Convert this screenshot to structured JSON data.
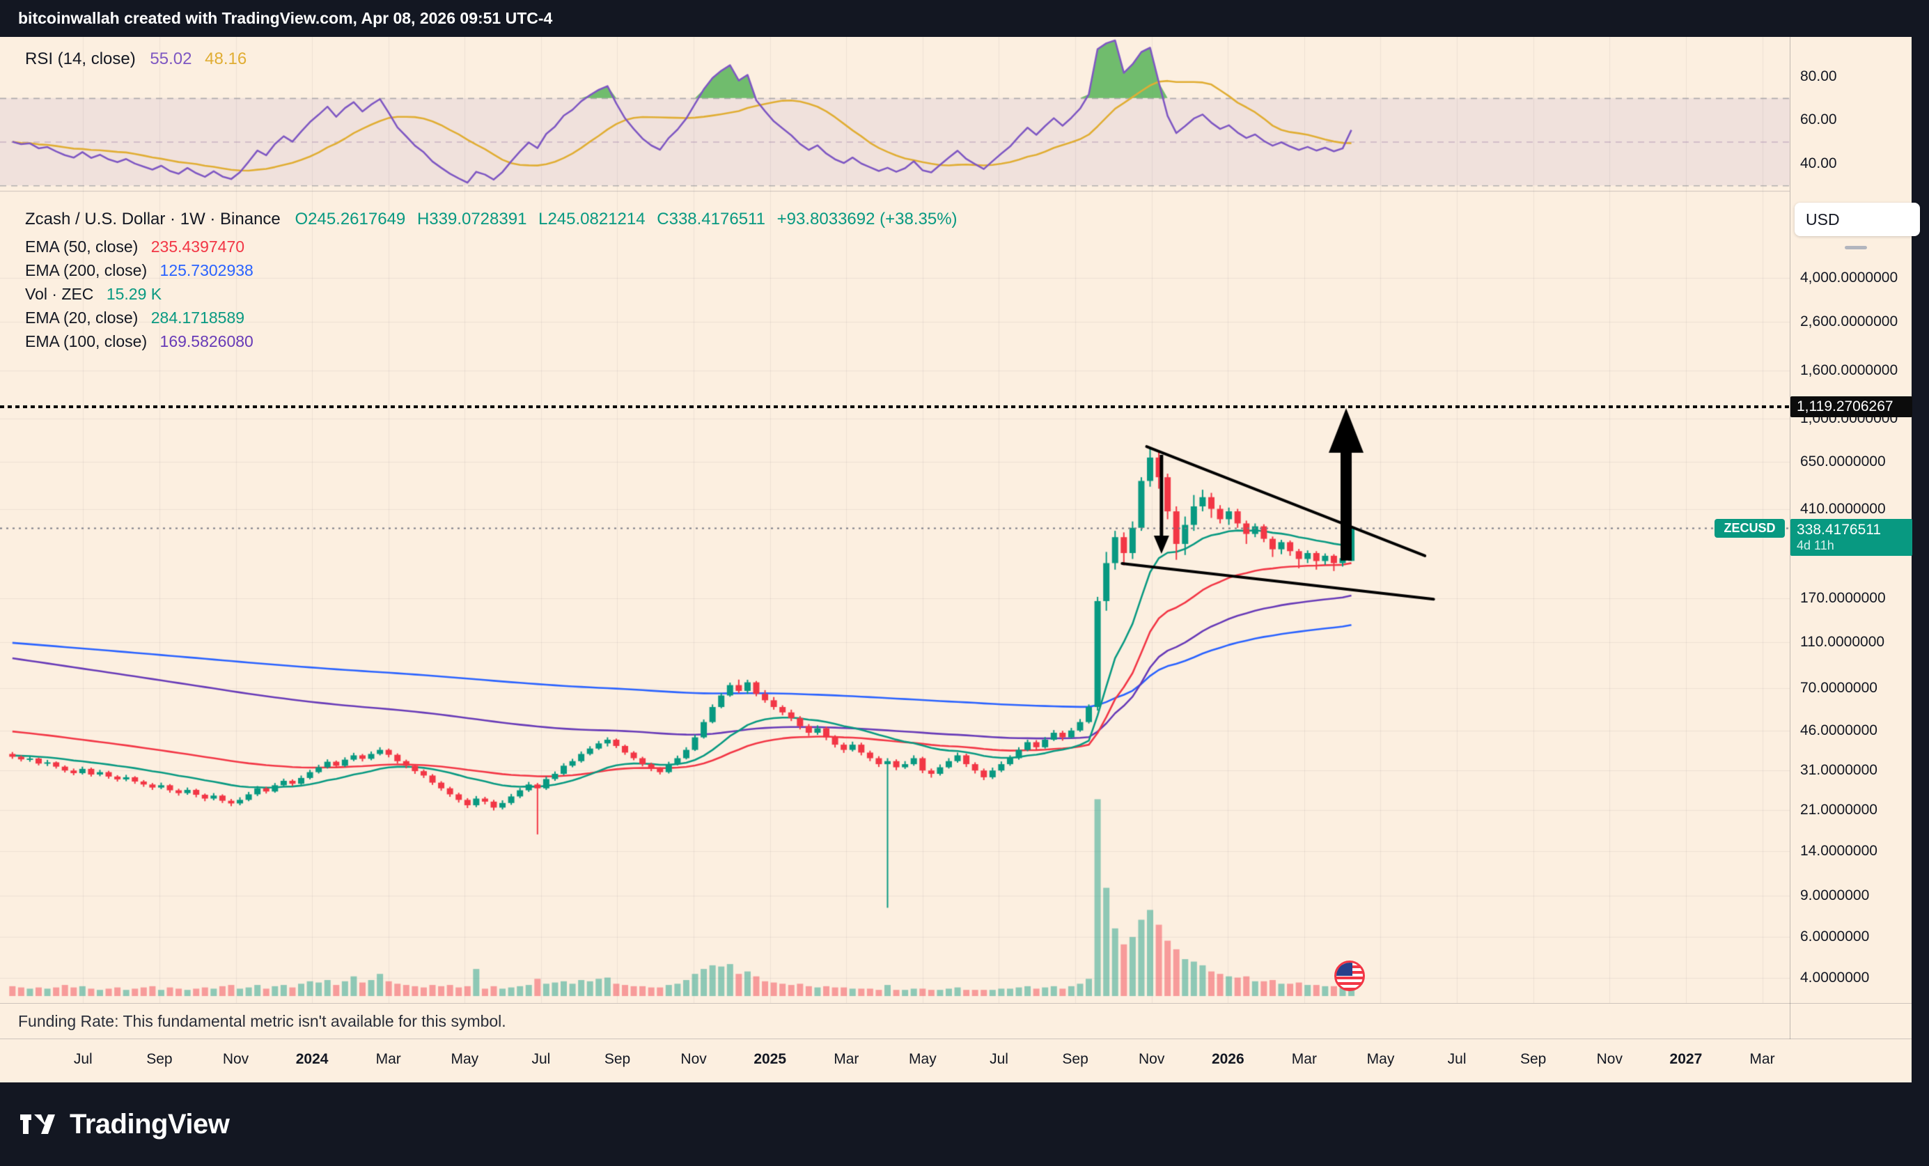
{
  "header": {
    "title": "bitcoinwallah created with TradingView.com, Apr 08, 2026 09:51 UTC-4"
  },
  "footer": {
    "brand": "TradingView"
  },
  "colors": {
    "up": "#089981",
    "down": "#f23645",
    "rsi": "#7e57c2",
    "rsi_ma": "#E0AD33",
    "ema20": "#089981",
    "ema50": "#f23645",
    "ema100": "#673ab7",
    "ema200": "#2962ff",
    "accent_teal": "#089981",
    "badge_black": "#0c0c0c",
    "background": "#fcefe0",
    "frame": "#131722",
    "vol_up": "rgba(8,153,129,0.45)",
    "vol_down": "rgba(242,54,69,0.45)"
  },
  "rsi_pane": {
    "label": "RSI (14, close)",
    "value": "55.02",
    "ma_value": "48.16",
    "axis_labels": [
      {
        "text": "80.00",
        "value": 80
      },
      {
        "text": "60.00",
        "value": 60
      },
      {
        "text": "40.00",
        "value": 40
      }
    ]
  },
  "main_pane": {
    "symbol_line": {
      "title": "Zcash / U.S. Dollar · 1W · Binance",
      "o": "O245.2617649",
      "h": "H339.0728391",
      "l": "L245.0821214",
      "c": "C338.4176511",
      "change": "+93.8033692 (+38.35%)"
    },
    "indicators": [
      {
        "label": "EMA (50, close)",
        "value": "235.4397470",
        "color": "#f23645"
      },
      {
        "label": "EMA (200, close)",
        "value": "125.7302938",
        "color": "#2962ff"
      },
      {
        "label": "Vol · ZEC",
        "value": "15.29 K",
        "color": "#089981"
      },
      {
        "label": "EMA (20, close)",
        "value": "284.1718589",
        "color": "#089981"
      },
      {
        "label": "EMA (100, close)",
        "value": "169.5826080",
        "color": "#673ab7"
      }
    ],
    "price_axis": {
      "currency_button": "USD",
      "labels": [
        {
          "text": "4,000.0000000",
          "price": 4000
        },
        {
          "text": "2,600.0000000",
          "price": 2600
        },
        {
          "text": "1,600.0000000",
          "price": 1600
        },
        {
          "text": "1,000.0000000",
          "price": 1000
        },
        {
          "text": "650.0000000",
          "price": 650
        },
        {
          "text": "410.0000000",
          "price": 410
        },
        {
          "text": "170.0000000",
          "price": 170
        },
        {
          "text": "110.0000000",
          "price": 110
        },
        {
          "text": "70.0000000",
          "price": 70
        },
        {
          "text": "46.0000000",
          "price": 46
        },
        {
          "text": "31.0000000",
          "price": 31
        },
        {
          "text": "21.0000000",
          "price": 21
        },
        {
          "text": "14.0000000",
          "price": 14
        },
        {
          "text": "9.0000000",
          "price": 9
        },
        {
          "text": "6.0000000",
          "price": 6
        },
        {
          "text": "4.0000000",
          "price": 4
        }
      ],
      "highlight_black": {
        "text": "1,119.2706267",
        "price": 1119.2706267
      },
      "highlight_teal": {
        "text": "338.4176511",
        "countdown": "4d 11h",
        "price": 338.4176511
      },
      "symbol_tag": "ZECUSD"
    }
  },
  "funding_note": "Funding Rate: This fundamental metric isn't available for this symbol.",
  "time_axis": [
    {
      "label": "Jul",
      "bold": false
    },
    {
      "label": "Sep",
      "bold": false
    },
    {
      "label": "Nov",
      "bold": false
    },
    {
      "label": "2024",
      "bold": true
    },
    {
      "label": "Mar",
      "bold": false
    },
    {
      "label": "May",
      "bold": false
    },
    {
      "label": "Jul",
      "bold": false
    },
    {
      "label": "Sep",
      "bold": false
    },
    {
      "label": "Nov",
      "bold": false
    },
    {
      "label": "2025",
      "bold": true
    },
    {
      "label": "Mar",
      "bold": false
    },
    {
      "label": "May",
      "bold": false
    },
    {
      "label": "Jul",
      "bold": false
    },
    {
      "label": "Sep",
      "bold": false
    },
    {
      "label": "Nov",
      "bold": false
    },
    {
      "label": "2026",
      "bold": true
    },
    {
      "label": "Mar",
      "bold": false
    },
    {
      "label": "May",
      "bold": false
    },
    {
      "label": "Jul",
      "bold": false
    },
    {
      "label": "Sep",
      "bold": false
    },
    {
      "label": "Nov",
      "bold": false
    },
    {
      "label": "2027",
      "bold": true
    },
    {
      "label": "Mar",
      "bold": false
    }
  ],
  "chart_data": {
    "type": "candlestick+volume+rsi",
    "symbol": "ZECUSD",
    "exchange": "Binance",
    "timeframe": "1W",
    "scale": "log",
    "ohlc_current": {
      "open": 245.2617649,
      "high": 339.0728391,
      "low": 245.0821214,
      "close": 338.4176511,
      "change": 93.8033692,
      "change_pct": 38.35
    },
    "levels": {
      "target_dotted": 1119.2706267,
      "last_price": 338.4176511
    },
    "candle_format": "[open, high, low, close, volume_thousands]",
    "candles": [
      [
        36.5,
        37.2,
        34.8,
        35.5,
        8
      ],
      [
        35.5,
        36.0,
        33.9,
        34.6,
        7
      ],
      [
        34.6,
        35.8,
        33.8,
        34.9,
        6
      ],
      [
        34.9,
        35.2,
        32.6,
        33.2,
        7
      ],
      [
        33.2,
        34.4,
        32.4,
        33.6,
        6
      ],
      [
        33.6,
        33.9,
        31.6,
        32.2,
        7
      ],
      [
        32.2,
        32.6,
        30.4,
        31.0,
        9
      ],
      [
        31.0,
        31.6,
        29.6,
        30.2,
        7
      ],
      [
        30.2,
        32.2,
        29.8,
        31.5,
        8
      ],
      [
        31.5,
        31.9,
        29.2,
        29.8,
        6
      ],
      [
        29.8,
        31.2,
        29.3,
        30.5,
        5
      ],
      [
        30.5,
        30.9,
        28.6,
        29.2,
        6
      ],
      [
        29.2,
        29.6,
        27.8,
        28.4,
        7
      ],
      [
        28.4,
        29.7,
        27.9,
        29.0,
        5
      ],
      [
        29.0,
        29.3,
        27.2,
        27.8,
        6
      ],
      [
        27.8,
        28.2,
        26.4,
        27.0,
        7
      ],
      [
        27.0,
        27.4,
        25.6,
        26.2,
        8
      ],
      [
        26.2,
        27.5,
        25.8,
        26.8,
        5
      ],
      [
        26.8,
        27.1,
        24.9,
        25.5,
        7
      ],
      [
        25.5,
        25.9,
        24.2,
        24.8,
        6
      ],
      [
        24.8,
        26.2,
        24.4,
        25.6,
        5
      ],
      [
        25.6,
        25.9,
        23.8,
        24.4,
        6
      ],
      [
        24.4,
        24.7,
        22.9,
        23.5,
        7
      ],
      [
        23.5,
        24.8,
        23.1,
        24.2,
        6
      ],
      [
        24.2,
        24.5,
        22.5,
        23.0,
        8
      ],
      [
        23.0,
        23.4,
        21.8,
        22.4,
        9
      ],
      [
        22.4,
        23.8,
        22.0,
        23.2,
        6
      ],
      [
        23.2,
        25.1,
        22.9,
        24.5,
        7
      ],
      [
        24.5,
        26.6,
        24.1,
        26.0,
        9
      ],
      [
        26.0,
        26.4,
        24.7,
        25.2,
        6
      ],
      [
        25.2,
        27.4,
        24.9,
        26.8,
        8
      ],
      [
        26.8,
        28.6,
        26.4,
        28.0,
        9
      ],
      [
        28.0,
        28.4,
        26.6,
        27.2,
        7
      ],
      [
        27.2,
        29.5,
        26.9,
        28.8,
        10
      ],
      [
        28.8,
        31.2,
        28.4,
        30.5,
        12
      ],
      [
        30.5,
        32.8,
        30.1,
        32.0,
        11
      ],
      [
        32.0,
        34.6,
        31.6,
        33.8,
        13
      ],
      [
        33.8,
        34.2,
        31.8,
        32.5,
        9
      ],
      [
        32.5,
        35.3,
        32.1,
        34.5,
        12
      ],
      [
        34.5,
        36.9,
        34.0,
        36.0,
        16
      ],
      [
        36.0,
        36.5,
        33.9,
        34.8,
        11
      ],
      [
        34.8,
        37.4,
        34.3,
        36.5,
        13
      ],
      [
        36.5,
        39.0,
        36.0,
        38.0,
        18
      ],
      [
        38.0,
        38.5,
        35.3,
        36.2,
        12
      ],
      [
        36.2,
        36.7,
        33.2,
        34.0,
        10
      ],
      [
        34.0,
        34.5,
        31.7,
        32.5,
        9
      ],
      [
        32.5,
        32.9,
        30.0,
        30.8,
        8
      ],
      [
        30.8,
        31.3,
        28.8,
        29.5,
        7
      ],
      [
        29.5,
        29.9,
        26.9,
        27.5,
        9
      ],
      [
        27.5,
        27.9,
        25.4,
        26.0,
        8
      ],
      [
        26.0,
        26.4,
        23.9,
        24.5,
        9
      ],
      [
        24.5,
        24.9,
        22.6,
        23.2,
        7
      ],
      [
        23.2,
        23.6,
        21.4,
        22.0,
        8
      ],
      [
        22.0,
        24.1,
        21.6,
        23.5,
        22
      ],
      [
        23.5,
        23.9,
        22.2,
        22.8,
        6
      ],
      [
        22.8,
        23.2,
        20.9,
        21.5,
        8
      ],
      [
        21.5,
        23.1,
        21.1,
        22.5,
        6
      ],
      [
        22.5,
        24.6,
        22.1,
        24.0,
        7
      ],
      [
        24.0,
        26.1,
        23.6,
        25.5,
        8
      ],
      [
        25.5,
        27.7,
        25.1,
        27.0,
        9
      ],
      [
        27.0,
        27.4,
        16.5,
        26.0,
        14
      ],
      [
        26.0,
        29.2,
        25.6,
        28.5,
        10
      ],
      [
        28.5,
        30.7,
        28.0,
        30.0,
        11
      ],
      [
        30.0,
        33.3,
        29.6,
        32.5,
        12
      ],
      [
        32.5,
        34.8,
        32.0,
        34.0,
        10
      ],
      [
        34.0,
        37.4,
        33.5,
        36.5,
        13
      ],
      [
        36.5,
        39.4,
        36.0,
        38.5,
        12
      ],
      [
        38.5,
        41.5,
        38.0,
        40.5,
        14
      ],
      [
        40.5,
        43.0,
        39.3,
        42.0,
        15
      ],
      [
        42.0,
        42.5,
        38.7,
        39.5,
        10
      ],
      [
        39.5,
        40.0,
        36.2,
        37.0,
        9
      ],
      [
        37.0,
        37.5,
        34.3,
        35.0,
        8
      ],
      [
        35.0,
        35.5,
        32.3,
        33.0,
        8
      ],
      [
        33.0,
        33.5,
        30.8,
        31.5,
        7
      ],
      [
        31.5,
        32.0,
        29.8,
        30.5,
        7
      ],
      [
        30.5,
        33.8,
        30.1,
        33.0,
        9
      ],
      [
        33.0,
        35.9,
        32.6,
        35.0,
        10
      ],
      [
        35.0,
        39.0,
        34.6,
        38.0,
        13
      ],
      [
        38.0,
        44.1,
        37.6,
        43.0,
        18
      ],
      [
        43.0,
        51.3,
        42.5,
        50.0,
        22
      ],
      [
        50.0,
        59.5,
        49.4,
        58.0,
        25
      ],
      [
        58.0,
        66.6,
        57.3,
        65.0,
        24
      ],
      [
        65.0,
        73.8,
        64.2,
        72.0,
        26
      ],
      [
        72.0,
        76.0,
        66.5,
        68.0,
        18
      ],
      [
        68.0,
        75.9,
        66.0,
        74.0,
        20
      ],
      [
        74.0,
        75.0,
        64.5,
        66.0,
        16
      ],
      [
        66.0,
        68.5,
        60.5,
        62.0,
        12
      ],
      [
        62.0,
        64.0,
        56.5,
        58.0,
        11
      ],
      [
        58.0,
        59.0,
        53.5,
        55.0,
        10
      ],
      [
        55.0,
        56.5,
        50.5,
        52.0,
        9
      ],
      [
        52.0,
        53.0,
        46.5,
        48.0,
        10
      ],
      [
        48.0,
        49.0,
        43.6,
        45.0,
        8
      ],
      [
        45.0,
        48.4,
        44.1,
        47.0,
        7
      ],
      [
        47.0,
        47.9,
        41.8,
        43.0,
        8
      ],
      [
        43.0,
        43.9,
        38.9,
        40.0,
        7
      ],
      [
        40.0,
        40.8,
        36.9,
        38.0,
        7
      ],
      [
        38.0,
        41.2,
        37.4,
        40.0,
        6
      ],
      [
        40.0,
        40.8,
        36.0,
        37.0,
        6
      ],
      [
        37.0,
        37.7,
        34.0,
        35.0,
        6
      ],
      [
        35.0,
        35.7,
        32.1,
        33.0,
        5
      ],
      [
        33.0,
        35.0,
        8.0,
        34.0,
        9
      ],
      [
        34.0,
        34.6,
        31.1,
        32.0,
        5
      ],
      [
        32.0,
        34.0,
        31.5,
        33.0,
        5
      ],
      [
        33.0,
        36.0,
        32.5,
        35.0,
        6
      ],
      [
        35.0,
        35.5,
        30.2,
        31.0,
        6
      ],
      [
        31.0,
        31.6,
        28.9,
        30.0,
        5
      ],
      [
        30.0,
        32.9,
        29.5,
        32.0,
        5
      ],
      [
        32.0,
        35.0,
        31.6,
        34.0,
        6
      ],
      [
        34.0,
        37.0,
        33.5,
        36.0,
        7
      ],
      [
        36.0,
        36.6,
        32.1,
        33.0,
        5
      ],
      [
        33.0,
        33.6,
        30.1,
        31.0,
        5
      ],
      [
        31.0,
        31.6,
        28.2,
        29.0,
        5
      ],
      [
        29.0,
        31.9,
        28.5,
        31.0,
        5
      ],
      [
        31.0,
        33.9,
        30.5,
        33.0,
        6
      ],
      [
        33.0,
        36.0,
        32.5,
        35.0,
        6
      ],
      [
        35.0,
        39.0,
        34.5,
        38.0,
        7
      ],
      [
        38.0,
        42.0,
        37.5,
        41.0,
        8
      ],
      [
        41.0,
        41.8,
        37.9,
        39.0,
        6
      ],
      [
        39.0,
        43.1,
        38.5,
        42.0,
        7
      ],
      [
        42.0,
        46.2,
        41.5,
        45.0,
        8
      ],
      [
        45.0,
        45.9,
        41.6,
        43.0,
        6
      ],
      [
        43.0,
        47.2,
        42.5,
        46.0,
        8
      ],
      [
        46.0,
        51.5,
        45.4,
        50.0,
        10
      ],
      [
        50.0,
        59.5,
        49.3,
        58.0,
        14
      ],
      [
        58.0,
        172.0,
        56.0,
        165.0,
        160
      ],
      [
        165.0,
        268.0,
        150.0,
        240.0,
        88
      ],
      [
        240.0,
        330.0,
        225.0,
        310.0,
        55
      ],
      [
        310.0,
        325.0,
        235.0,
        265.0,
        42
      ],
      [
        265.0,
        362.0,
        250.0,
        340.0,
        48
      ],
      [
        340.0,
        560.0,
        330.0,
        540.0,
        62
      ],
      [
        540.0,
        755.0,
        510.0,
        680.0,
        70
      ],
      [
        680.0,
        720.0,
        500.0,
        560.0,
        58
      ],
      [
        560.0,
        580.0,
        370.0,
        400.0,
        45
      ],
      [
        400.0,
        420.0,
        248.0,
        290.0,
        38
      ],
      [
        290.0,
        380.0,
        260.0,
        350.0,
        30
      ],
      [
        350.0,
        470.0,
        330.0,
        420.0,
        28
      ],
      [
        420.0,
        495.0,
        400.0,
        460.0,
        25
      ],
      [
        460.0,
        480.0,
        375.0,
        410.0,
        20
      ],
      [
        410.0,
        425.0,
        355.0,
        370.0,
        18
      ],
      [
        370.0,
        415.0,
        350.0,
        400.0,
        16
      ],
      [
        400.0,
        410.0,
        340.0,
        355.0,
        15
      ],
      [
        355.0,
        365.0,
        290.0,
        320.0,
        16
      ],
      [
        320.0,
        355.0,
        310.0,
        345.0,
        12
      ],
      [
        345.0,
        352.0,
        295.0,
        305.0,
        12
      ],
      [
        305.0,
        312.0,
        255.0,
        275.0,
        13
      ],
      [
        275.0,
        302.0,
        262.0,
        295.0,
        10
      ],
      [
        295.0,
        300.0,
        258.0,
        270.0,
        10
      ],
      [
        270.0,
        276.0,
        228.0,
        250.0,
        11
      ],
      [
        250.0,
        272.0,
        240.0,
        265.0,
        9
      ],
      [
        265.0,
        270.0,
        225.0,
        245.0,
        9
      ],
      [
        245.0,
        264.0,
        236.0,
        258.0,
        8
      ],
      [
        258.0,
        262.0,
        222.0,
        240.0,
        8
      ],
      [
        240.0,
        258.0,
        232.0,
        252.0,
        7
      ],
      [
        245.2617649,
        339.0728391,
        245.0821214,
        338.4176511,
        15.29
      ]
    ],
    "emas": [
      {
        "period": 200,
        "color": "#2962ff",
        "seed": 110,
        "current": 125.7302938
      },
      {
        "period": 100,
        "color": "#673ab7",
        "seed": 95,
        "current": 169.582608
      },
      {
        "period": 50,
        "color": "#f23645",
        "seed": 46,
        "current": 235.439747
      },
      {
        "period": 20,
        "color": "#089981",
        "seed": 36,
        "current": 284.1718589
      }
    ],
    "rsi": {
      "period": 14,
      "overbought": 70,
      "mid": 50,
      "oversold": 30,
      "current": 55.02,
      "ma_current": 48.16
    },
    "annotations": {
      "trendlines": [
        {
          "from": {
            "w": 129.6,
            "price": 758
          },
          "to": {
            "w": 161.4,
            "price": 258
          }
        },
        {
          "from": {
            "w": 126.8,
            "price": 239
          },
          "to": {
            "w": 162.4,
            "price": 168
          }
        }
      ],
      "arrows": [
        {
          "w": 131.3,
          "from": 698,
          "to": 263,
          "style": "thin"
        },
        {
          "w": 152.4,
          "from": 246,
          "to": 1107,
          "style": "bold"
        }
      ],
      "event_icon": {
        "w": 152.9,
        "price": 4.05
      }
    }
  }
}
